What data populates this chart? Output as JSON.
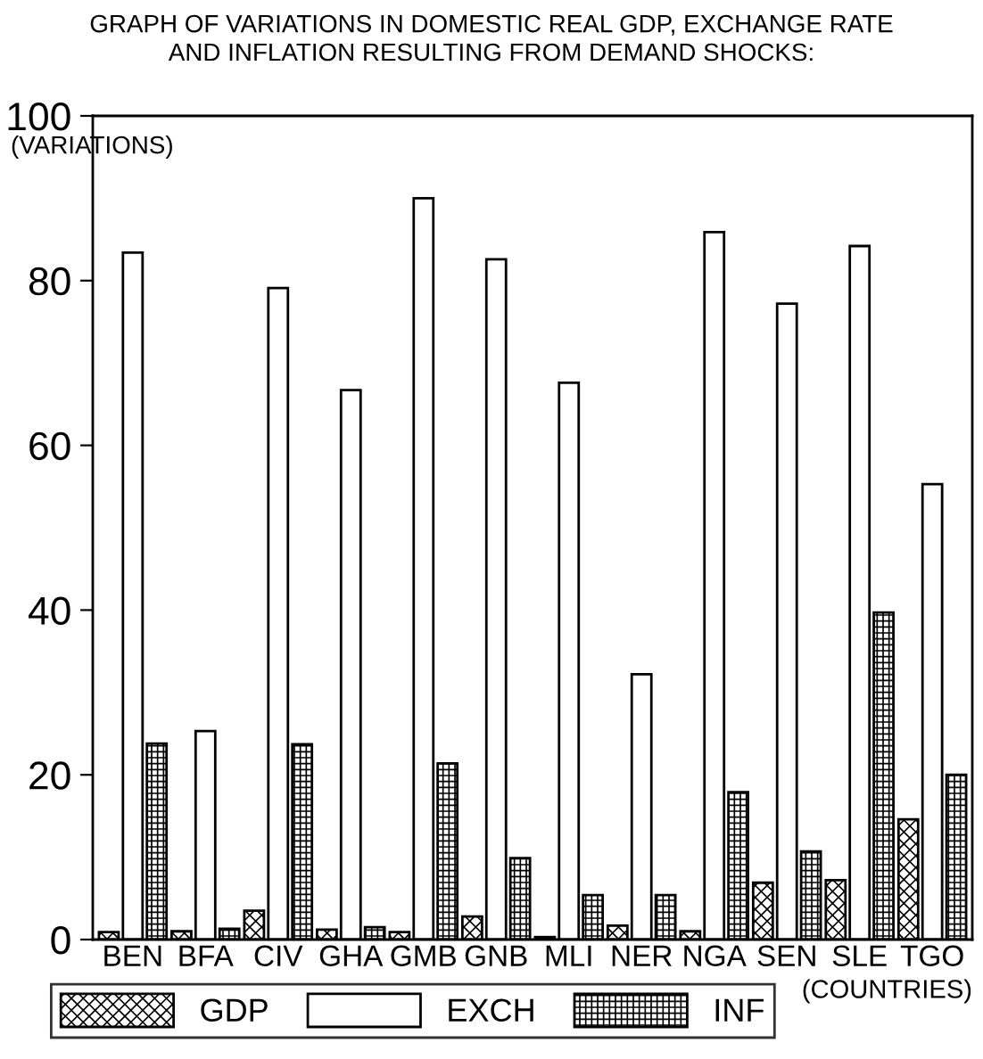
{
  "chart_data": {
    "type": "bar",
    "title": "GRAPH OF VARIATIONS IN DOMESTIC REAL GDP, EXCHANGE RATE\nAND INFLATION RESULTING FROM DEMAND SHOCKS:",
    "xlabel": "(COUNTRIES)",
    "ylabel": "(VARIATIONS)",
    "categories": [
      "BEN",
      "BFA",
      "CIV",
      "GHA",
      "GMB",
      "GNB",
      "MLI",
      "NER",
      "NGA",
      "SEN",
      "SLE",
      "TGO"
    ],
    "series": [
      {
        "name": "GDP",
        "color": "#000000",
        "values": [
          0.9,
          1.0,
          3.5,
          1.2,
          0.9,
          2.8,
          0.3,
          1.7,
          1.0,
          6.9,
          7.2,
          14.6
        ]
      },
      {
        "name": "EXCH",
        "color": "#ffffff",
        "values": [
          83.4,
          25.3,
          79.1,
          66.7,
          90.0,
          82.6,
          67.6,
          32.2,
          85.9,
          77.2,
          84.2,
          55.3
        ]
      },
      {
        "name": "INF",
        "color": "#000000",
        "values": [
          23.8,
          1.3,
          23.7,
          1.5,
          21.4,
          9.9,
          5.4,
          5.4,
          17.9,
          10.7,
          39.7,
          20.0
        ]
      }
    ],
    "ylim": [
      0,
      100
    ],
    "yticks": [
      0,
      20,
      40,
      60,
      80,
      100
    ],
    "grid": false,
    "legend": "bottom"
  }
}
